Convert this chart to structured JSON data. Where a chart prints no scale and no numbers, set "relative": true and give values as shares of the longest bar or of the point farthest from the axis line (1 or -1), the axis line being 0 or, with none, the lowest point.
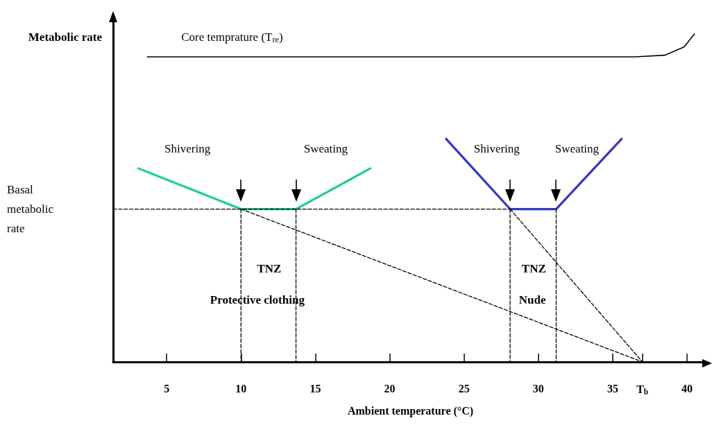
{
  "chart_data": {
    "type": "line",
    "relative": true,
    "xlabel": "Ambient temperature (°C)",
    "ylabel": "Metabolic rate",
    "xlim": [
      1.4,
      41.4
    ],
    "xticks": [
      5,
      10,
      15,
      20,
      25,
      30,
      35,
      {
        "value": 37,
        "label": "T$_{b}$"
      },
      40
    ],
    "marker": "none",
    "ref_lines": [
      {
        "axis": "x",
        "value": 1.4,
        "color": "#000000"
      }
    ],
    "series": [
      {
        "color": "#000000",
        "line_style": "solid",
        "x": [
          3.7,
          36.5,
          38.5,
          39.8,
          40.5
        ],
        "values": [
          0.93,
          0.93,
          0.935,
          0.96,
          1.0
        ]
      },
      {
        "color": "#1ccf96",
        "line_style": "solid",
        "x": [
          3.1,
          10,
          13.7,
          18.7
        ],
        "values": [
          0.59,
          0.466,
          0.466,
          0.59
        ]
      },
      {
        "color": "#3434c8",
        "line_style": "solid",
        "x": [
          23.8,
          28.1,
          31.2,
          35.6
        ],
        "values": [
          0.68,
          0.466,
          0.466,
          0.68
        ]
      },
      {
        "color": "#000000",
        "line_style": "dashed",
        "x": [
          1.4,
          28.1
        ],
        "values": [
          0.466,
          0.466
        ]
      },
      {
        "color": "#000000",
        "line_style": "dashed",
        "x": [
          10,
          10
        ],
        "values": [
          0.466,
          0
        ]
      },
      {
        "color": "#000000",
        "line_style": "dashed",
        "x": [
          13.7,
          13.7
        ],
        "values": [
          0.466,
          0
        ]
      },
      {
        "color": "#000000",
        "line_style": "dashed",
        "x": [
          28.1,
          28.1
        ],
        "values": [
          0.466,
          0
        ]
      },
      {
        "color": "#000000",
        "line_style": "dashed",
        "x": [
          31.2,
          31.2
        ],
        "values": [
          0.466,
          0
        ]
      },
      {
        "color": "#000000",
        "line_style": "dashed",
        "x": [
          10,
          37
        ],
        "values": [
          0.466,
          0
        ]
      },
      {
        "color": "#000000",
        "line_style": "dashed",
        "x": [
          28.1,
          37
        ],
        "values": [
          0.466,
          0
        ]
      }
    ],
    "annotations": [
      "Core temprature (T$_{re}$)",
      "Basal metabolic rate",
      "Shivering",
      "Sweating",
      "Shivering",
      "Sweating",
      "TNZ",
      "Protective clothing",
      "TNZ",
      "Nude"
    ]
  }
}
